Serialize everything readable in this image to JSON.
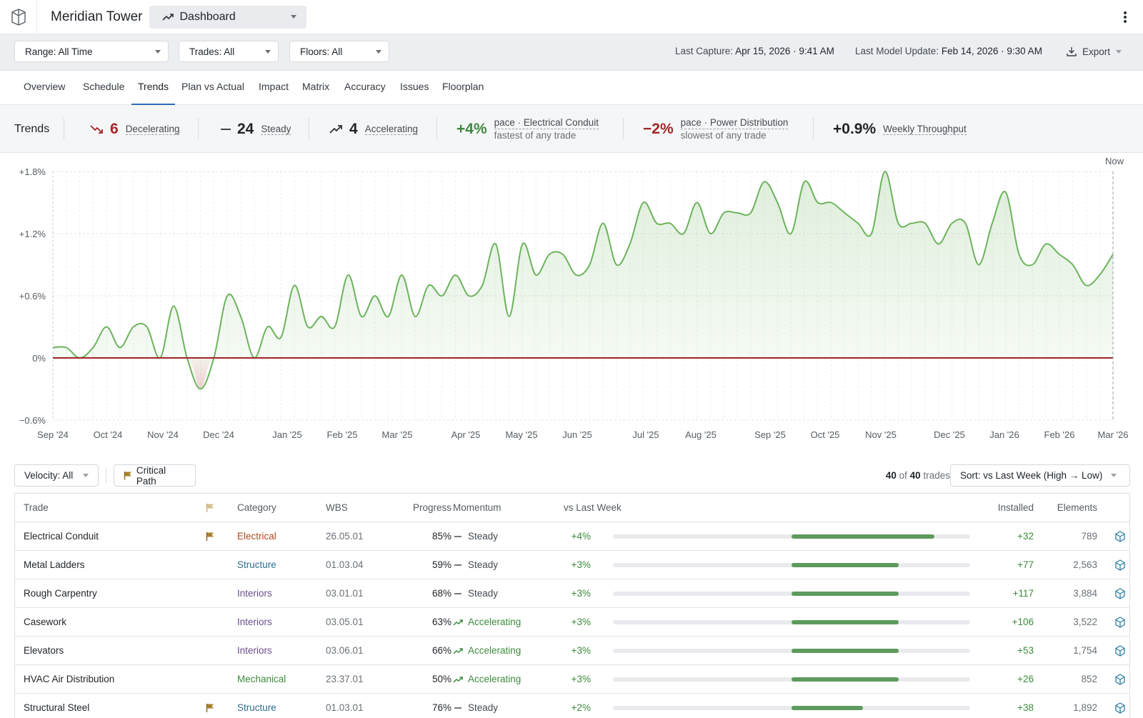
{
  "app": {
    "title": "Meridian Tower",
    "dashboard_label": "Dashboard"
  },
  "filters": {
    "range": "Range: All Time",
    "trades": "Trades: All",
    "floors": "Floors: All",
    "last_capture_label": "Last Capture:",
    "last_capture_value": "Apr 15, 2026 · 9:41 AM",
    "last_model_label": "Last Model Update:",
    "last_model_value": "Feb 14, 2026 · 9:30 AM",
    "export": "Export"
  },
  "tabs": [
    "Overview",
    "Schedule",
    "Trends",
    "Plan vs Actual",
    "Impact",
    "Matrix",
    "Accuracy",
    "Issues",
    "Floorplan"
  ],
  "active_tab": "Trends",
  "summary": {
    "title": "Trends",
    "decelerating_count": "6",
    "decelerating_label": "Decelerating",
    "steady_count": "24",
    "steady_label": "Steady",
    "accelerating_count": "4",
    "accelerating_label": "Accelerating",
    "fastest_value": "+4%",
    "fastest_line1": "pace · Electrical Conduit",
    "fastest_line2": "fastest of any trade",
    "slowest_value": "−2%",
    "slowest_line1": "pace · Power Distribution",
    "slowest_line2": "slowest of any trade",
    "throughput_value": "+0.9%",
    "throughput_label": "Weekly Throughput"
  },
  "chart_data": {
    "type": "area",
    "y_ticks": [
      "+1.8%",
      "+1.2%",
      "+0.6%",
      "0%",
      "−0.6%"
    ],
    "ylim": [
      -0.6,
      1.8
    ],
    "x_ticks": [
      "Sep '24",
      "Oct '24",
      "Nov '24",
      "Dec '24",
      "Jan '25",
      "Feb '25",
      "Mar '25",
      "Apr '25",
      "May '25",
      "Jun '25",
      "Jul '25",
      "Aug '25",
      "Sep '25",
      "Oct '25",
      "Nov '25",
      "Dec '25",
      "Jan '26",
      "Feb '26",
      "Mar '26"
    ],
    "now_label": "Now",
    "baseline": 0,
    "values": [
      0.1,
      0.1,
      0.0,
      0.1,
      0.3,
      0.1,
      0.3,
      0.3,
      0.0,
      0.5,
      0.0,
      -0.3,
      0.0,
      0.6,
      0.4,
      0.0,
      0.3,
      0.2,
      0.7,
      0.3,
      0.4,
      0.3,
      0.8,
      0.4,
      0.6,
      0.4,
      0.8,
      0.4,
      0.7,
      0.6,
      0.8,
      0.6,
      0.7,
      1.1,
      0.4,
      1.1,
      0.8,
      1.0,
      1.0,
      0.8,
      0.9,
      1.3,
      0.9,
      1.1,
      1.5,
      1.3,
      1.3,
      1.2,
      1.5,
      1.2,
      1.4,
      1.4,
      1.4,
      1.7,
      1.5,
      1.2,
      1.7,
      1.5,
      1.5,
      1.4,
      1.3,
      1.2,
      1.8,
      1.3,
      1.3,
      1.3,
      1.1,
      1.3,
      1.3,
      0.9,
      1.3,
      1.6,
      1.0,
      0.9,
      1.1,
      1.0,
      0.9,
      0.7,
      0.8,
      1.0
    ]
  },
  "table_controls": {
    "velocity": "Velocity: All",
    "critical_path": "Critical Path",
    "count_shown": "40",
    "count_of": "of",
    "count_total": "40",
    "count_unit": "trades",
    "sort": "Sort: vs Last Week (High → Low)"
  },
  "table": {
    "headers": {
      "trade": "Trade",
      "category": "Category",
      "wbs": "WBS",
      "progress": "Progress",
      "momentum": "Momentum",
      "vs_last_week": "vs Last Week",
      "installed": "Installed",
      "elements": "Elements"
    },
    "rows": [
      {
        "trade": "Electrical Conduit",
        "critical": true,
        "category": "Electrical",
        "category_color": "#b04a1e",
        "wbs": "26.05.01",
        "progress": "85%",
        "momentum": "Steady",
        "vs": "+4%",
        "bar": 0.8,
        "installed": "+32",
        "elements": "789"
      },
      {
        "trade": "Metal Ladders",
        "critical": false,
        "category": "Structure",
        "category_color": "#2a6f8f",
        "wbs": "01.03.04",
        "progress": "59%",
        "momentum": "Steady",
        "vs": "+3%",
        "bar": 0.6,
        "installed": "+77",
        "elements": "2,563"
      },
      {
        "trade": "Rough Carpentry",
        "critical": false,
        "category": "Interiors",
        "category_color": "#6a4e8e",
        "wbs": "03.01.01",
        "progress": "68%",
        "momentum": "Steady",
        "vs": "+3%",
        "bar": 0.6,
        "installed": "+117",
        "elements": "3,884"
      },
      {
        "trade": "Casework",
        "critical": false,
        "category": "Interiors",
        "category_color": "#6a4e8e",
        "wbs": "03.05.01",
        "progress": "63%",
        "momentum": "Accelerating",
        "vs": "+3%",
        "bar": 0.6,
        "installed": "+106",
        "elements": "3,522"
      },
      {
        "trade": "Elevators",
        "critical": false,
        "category": "Interiors",
        "category_color": "#6a4e8e",
        "wbs": "03.06.01",
        "progress": "66%",
        "momentum": "Accelerating",
        "vs": "+3%",
        "bar": 0.6,
        "installed": "+53",
        "elements": "1,754"
      },
      {
        "trade": "HVAC Air Distribution",
        "critical": false,
        "category": "Mechanical",
        "category_color": "#3d8a3d",
        "wbs": "23.37.01",
        "progress": "50%",
        "momentum": "Accelerating",
        "vs": "+3%",
        "bar": 0.6,
        "installed": "+26",
        "elements": "852"
      },
      {
        "trade": "Structural Steel",
        "critical": true,
        "category": "Structure",
        "category_color": "#2a6f8f",
        "wbs": "01.03.01",
        "progress": "76%",
        "momentum": "Steady",
        "vs": "+2%",
        "bar": 0.4,
        "installed": "+38",
        "elements": "1,892"
      }
    ]
  },
  "colors": {
    "accent": "#2f6db3",
    "positive": "#3d8a3d",
    "negative": "#a12626",
    "line": "#6cb35c",
    "flag": "#a8802a"
  }
}
